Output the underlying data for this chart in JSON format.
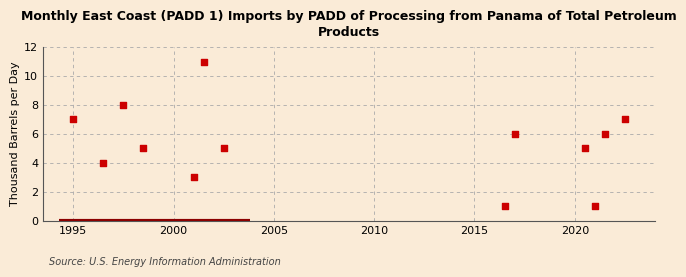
{
  "title": "Monthly East Coast (PADD 1) Imports by PADD of Processing from Panama of Total Petroleum\nProducts",
  "ylabel": "Thousand Barrels per Day",
  "source": "Source: U.S. Energy Information Administration",
  "background_color": "#faebd7",
  "scatter_color": "#cc0000",
  "line_color": "#8b0000",
  "scatter_points": [
    [
      1995.0,
      7
    ],
    [
      1996.5,
      4
    ],
    [
      1998.5,
      5
    ],
    [
      1997.5,
      8
    ],
    [
      2001.0,
      3
    ],
    [
      2001.5,
      11
    ],
    [
      2002.5,
      5
    ],
    [
      2016.5,
      1
    ],
    [
      2017.0,
      6
    ],
    [
      2020.5,
      5
    ],
    [
      2021.0,
      1
    ],
    [
      2021.5,
      6
    ],
    [
      2022.5,
      7
    ]
  ],
  "line_x_start": 1994.3,
  "line_x_end": 2003.8,
  "line_y": 0,
  "xlim": [
    1993.5,
    2024.0
  ],
  "ylim": [
    0,
    12
  ],
  "xticks": [
    1995,
    2000,
    2005,
    2010,
    2015,
    2020
  ],
  "yticks": [
    0,
    2,
    4,
    6,
    8,
    10,
    12
  ],
  "grid_color": "#aaaaaa",
  "grid_style": "--",
  "title_fontsize": 9,
  "axis_fontsize": 8,
  "tick_fontsize": 8,
  "source_fontsize": 7
}
